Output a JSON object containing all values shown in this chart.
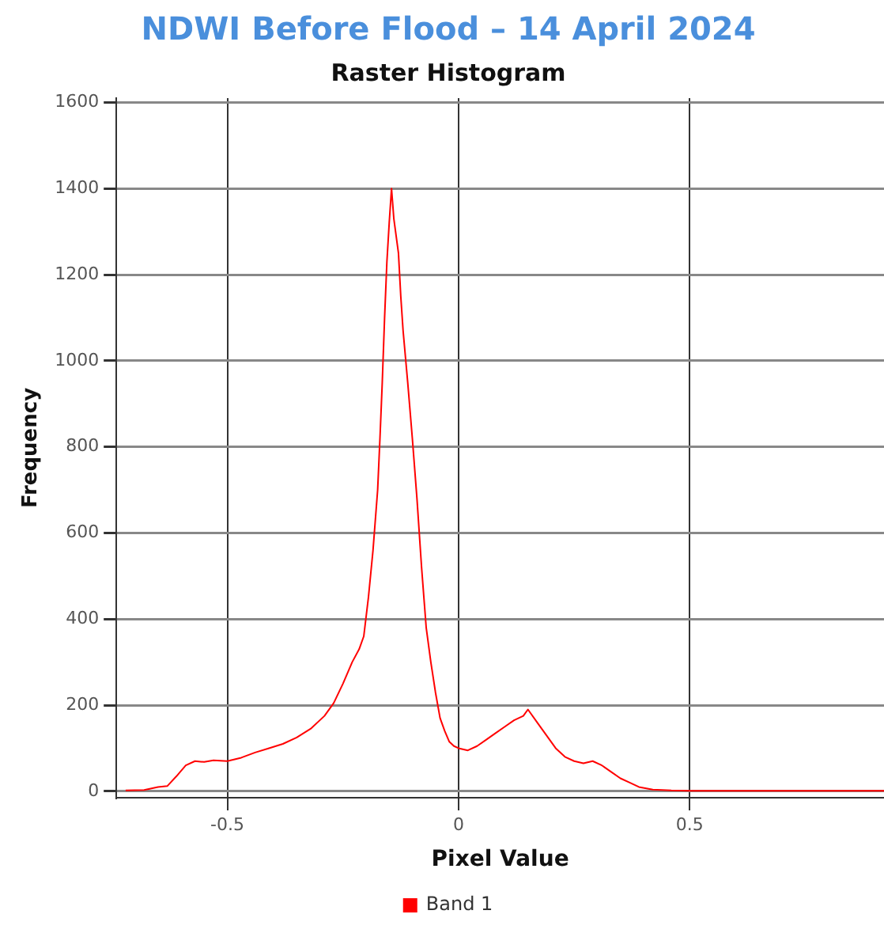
{
  "chart_data": {
    "type": "line",
    "title": "NDWI Before Flood – 14 April 2024",
    "subtitle": "Raster Histogram",
    "xlabel": "Pixel Value",
    "ylabel": "Frequency",
    "xlim": [
      -0.74,
      0.92
    ],
    "xticks": [
      -0.5,
      0,
      0.5
    ],
    "ylim": [
      -15,
      1610
    ],
    "yticks": [
      0,
      200,
      400,
      600,
      800,
      1000,
      1200,
      1400,
      1600
    ],
    "grid": true,
    "legend": "bottom",
    "marker": "none",
    "line_style": "solid",
    "series": [
      {
        "name": "Band 1",
        "color": "#ff0000",
        "x": [
          -0.72,
          -0.68,
          -0.65,
          -0.63,
          -0.61,
          -0.59,
          -0.57,
          -0.55,
          -0.53,
          -0.5,
          -0.47,
          -0.44,
          -0.41,
          -0.38,
          -0.35,
          -0.32,
          -0.29,
          -0.27,
          -0.25,
          -0.23,
          -0.215,
          -0.205,
          -0.195,
          -0.185,
          -0.175,
          -0.17,
          -0.165,
          -0.16,
          -0.155,
          -0.15,
          -0.145,
          -0.14,
          -0.135,
          -0.13,
          -0.125,
          -0.12,
          -0.11,
          -0.1,
          -0.09,
          -0.08,
          -0.07,
          -0.06,
          -0.05,
          -0.04,
          -0.03,
          -0.02,
          -0.01,
          0,
          0.02,
          0.04,
          0.06,
          0.08,
          0.1,
          0.12,
          0.14,
          0.15,
          0.17,
          0.19,
          0.21,
          0.23,
          0.25,
          0.27,
          0.29,
          0.31,
          0.33,
          0.35,
          0.37,
          0.39,
          0.42,
          0.46,
          0.5,
          0.6,
          0.7,
          0.8,
          0.92
        ],
        "values": [
          2,
          3,
          10,
          12,
          35,
          60,
          70,
          68,
          72,
          70,
          78,
          90,
          100,
          110,
          125,
          145,
          175,
          205,
          250,
          300,
          330,
          360,
          450,
          560,
          700,
          820,
          950,
          1100,
          1230,
          1320,
          1400,
          1330,
          1290,
          1250,
          1150,
          1070,
          950,
          820,
          680,
          520,
          380,
          300,
          230,
          170,
          140,
          115,
          105,
          100,
          95,
          105,
          120,
          135,
          150,
          165,
          175,
          190,
          160,
          130,
          100,
          80,
          70,
          65,
          70,
          60,
          45,
          30,
          20,
          10,
          4,
          2,
          1,
          1,
          1,
          1,
          1
        ]
      }
    ]
  }
}
